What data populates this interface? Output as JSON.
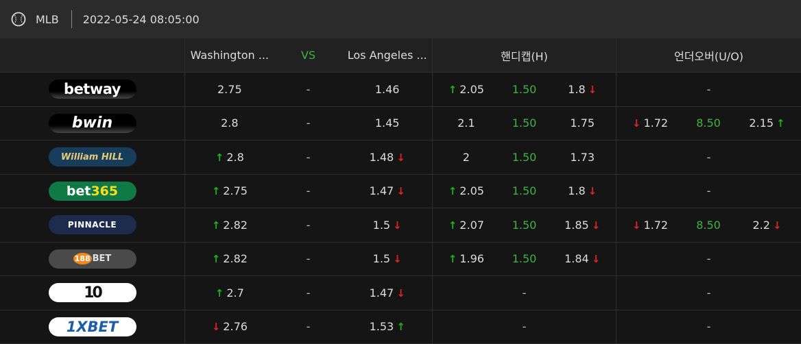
{
  "header": {
    "sport_icon": "baseball-icon",
    "league": "MLB",
    "datetime": "2022-05-24 08:05:00"
  },
  "columns": {
    "home": "Washington ...",
    "vs": "VS",
    "away": "Los Angeles ...",
    "handicap": "핸디캡(H)",
    "over_under": "언더오버(U/O)"
  },
  "colors": {
    "up_arrow": "#19b319",
    "down_arrow": "#e02323",
    "green_line": "#3fb33f"
  },
  "rows": [
    {
      "bookmaker": "betway",
      "home": "2.75",
      "home_move": "",
      "vs": "-",
      "away": "1.46",
      "away_move": "",
      "hcp_home": "2.05",
      "hcp_home_move": "up",
      "hcp_line": "1.50",
      "hcp_away": "1.8",
      "hcp_away_move": "down",
      "ou_dash": "-",
      "ou_under": "",
      "ou_under_move": "",
      "ou_line": "",
      "ou_over": "",
      "ou_over_move": ""
    },
    {
      "bookmaker": "bwin",
      "home": "2.8",
      "home_move": "",
      "vs": "-",
      "away": "1.45",
      "away_move": "",
      "hcp_home": "2.1",
      "hcp_home_move": "",
      "hcp_line": "1.50",
      "hcp_away": "1.75",
      "hcp_away_move": "",
      "ou_dash": "",
      "ou_under": "1.72",
      "ou_under_move": "down",
      "ou_line": "8.50",
      "ou_over": "2.15",
      "ou_over_move": "up"
    },
    {
      "bookmaker": "WilliamHILL",
      "home": "2.8",
      "home_move": "up",
      "vs": "-",
      "away": "1.48",
      "away_move": "down",
      "hcp_home": "2",
      "hcp_home_move": "",
      "hcp_line": "1.50",
      "hcp_away": "1.73",
      "hcp_away_move": "",
      "ou_dash": "-",
      "ou_under": "",
      "ou_under_move": "",
      "ou_line": "",
      "ou_over": "",
      "ou_over_move": ""
    },
    {
      "bookmaker": "bet365",
      "home": "2.75",
      "home_move": "up",
      "vs": "-",
      "away": "1.47",
      "away_move": "down",
      "hcp_home": "2.05",
      "hcp_home_move": "up",
      "hcp_line": "1.50",
      "hcp_away": "1.8",
      "hcp_away_move": "down",
      "ou_dash": "-",
      "ou_under": "",
      "ou_under_move": "",
      "ou_line": "",
      "ou_over": "",
      "ou_over_move": ""
    },
    {
      "bookmaker": "PINNACLE",
      "home": "2.82",
      "home_move": "up",
      "vs": "-",
      "away": "1.5",
      "away_move": "down",
      "hcp_home": "2.07",
      "hcp_home_move": "up",
      "hcp_line": "1.50",
      "hcp_away": "1.85",
      "hcp_away_move": "down",
      "ou_dash": "",
      "ou_under": "1.72",
      "ou_under_move": "down",
      "ou_line": "8.50",
      "ou_over": "2.2",
      "ou_over_move": "down"
    },
    {
      "bookmaker": "188BET",
      "home": "2.82",
      "home_move": "up",
      "vs": "-",
      "away": "1.5",
      "away_move": "down",
      "hcp_home": "1.96",
      "hcp_home_move": "up",
      "hcp_line": "1.50",
      "hcp_away": "1.84",
      "hcp_away_move": "down",
      "ou_dash": "-",
      "ou_under": "",
      "ou_under_move": "",
      "ou_line": "",
      "ou_over": "",
      "ou_over_move": ""
    },
    {
      "bookmaker": "10",
      "home": "2.7",
      "home_move": "up",
      "vs": "-",
      "away": "1.47",
      "away_move": "down",
      "hcp_dash": "-",
      "hcp_home": "",
      "hcp_home_move": "",
      "hcp_line": "",
      "hcp_away": "",
      "hcp_away_move": "",
      "ou_dash": "-",
      "ou_under": "",
      "ou_under_move": "",
      "ou_line": "",
      "ou_over": "",
      "ou_over_move": ""
    },
    {
      "bookmaker": "1XBET",
      "home": "2.76",
      "home_move": "down",
      "vs": "-",
      "away": "1.53",
      "away_move": "up",
      "hcp_dash": "-",
      "hcp_home": "",
      "hcp_home_move": "",
      "hcp_line": "",
      "hcp_away": "",
      "hcp_away_move": "",
      "ou_dash": "-",
      "ou_under": "",
      "ou_under_move": "",
      "ou_line": "",
      "ou_over": "",
      "ou_over_move": ""
    }
  ]
}
